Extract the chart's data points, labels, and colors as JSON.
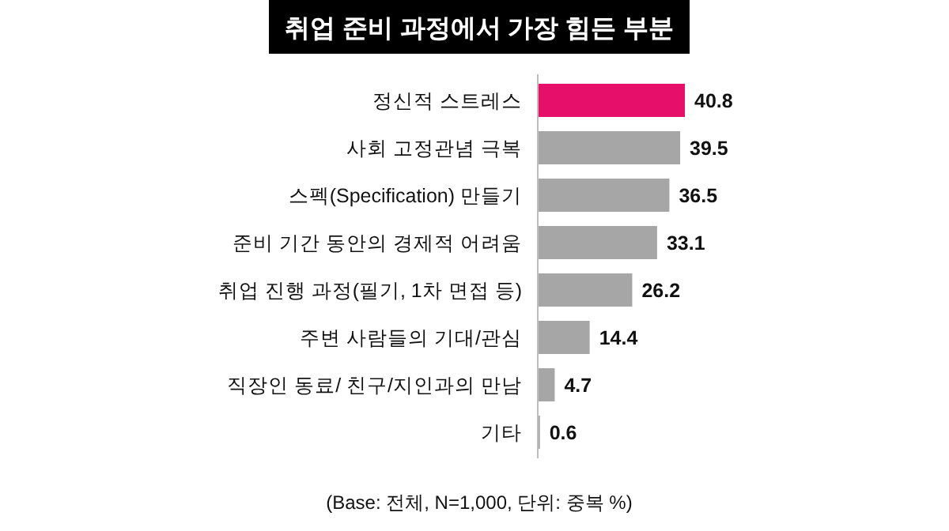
{
  "chart_data": {
    "type": "bar",
    "orientation": "horizontal",
    "title": "취업 준비 과정에서 가장 힘든 부분",
    "categories": [
      "정신적 스트레스",
      "사회 고정관념 극복",
      "스펙(Specification) 만들기",
      "준비 기간 동안의 경제적 어려움",
      "취업 진행 과정(필기, 1차 면접 등)",
      "주변 사람들의 기대/관심",
      "직장인 동료/ 친구/지인과의 만남",
      "기타"
    ],
    "values": [
      40.8,
      39.5,
      36.5,
      33.1,
      26.2,
      14.4,
      4.7,
      0.6
    ],
    "colors": [
      "#e6106a",
      "#a6a6a6",
      "#a6a6a6",
      "#a6a6a6",
      "#a6a6a6",
      "#a6a6a6",
      "#a6a6a6",
      "#a6a6a6"
    ],
    "data_labels": true,
    "annotations": [
      "(Base: 전체, N=1,000, 단위: 중복 %)"
    ]
  }
}
